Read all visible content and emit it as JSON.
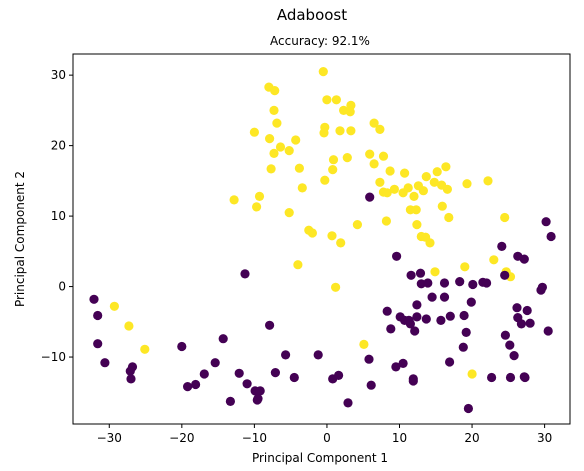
{
  "chart_data": {
    "type": "scatter",
    "title": "Adaboost",
    "subtitle": "Accuracy: 92.1%",
    "xlabel": "Principal Component 1",
    "ylabel": "Principal Component 2",
    "xlim": [
      -35,
      33.5
    ],
    "ylim": [
      -19.5,
      33
    ],
    "xticks": [
      -30,
      -20,
      -10,
      0,
      10,
      20,
      30
    ],
    "yticks": [
      -10,
      0,
      10,
      20,
      30
    ],
    "grid": false,
    "legend": "none",
    "colors": {
      "class_0": "#440154",
      "class_1": "#fde725"
    },
    "series": [
      {
        "color": "#fde725",
        "points": [
          [
            -8,
            28.3
          ],
          [
            -7.2,
            27.8
          ],
          [
            -7.3,
            25
          ],
          [
            -6.9,
            23.2
          ],
          [
            -10,
            21.9
          ],
          [
            -7.9,
            21
          ],
          [
            -4.3,
            20.8
          ],
          [
            -6.4,
            19.8
          ],
          [
            -5.2,
            19.3
          ],
          [
            -7.3,
            18.9
          ],
          [
            -7.7,
            16.7
          ],
          [
            -3.8,
            16.8
          ],
          [
            -3.4,
            14
          ],
          [
            -9.3,
            12.8
          ],
          [
            -12.8,
            12.3
          ],
          [
            -9.7,
            11.3
          ],
          [
            -5.2,
            10.5
          ],
          [
            -2.5,
            8
          ],
          [
            -2,
            7.6
          ],
          [
            -4,
            3.1
          ],
          [
            1.2,
            -0.1
          ],
          [
            -0.5,
            30.5
          ],
          [
            0,
            26.5
          ],
          [
            1.3,
            26.5
          ],
          [
            3.3,
            25.7
          ],
          [
            2.3,
            25
          ],
          [
            3.2,
            24.8
          ],
          [
            -0.3,
            22.6
          ],
          [
            1.8,
            22.1
          ],
          [
            3.3,
            22.1
          ],
          [
            6.5,
            23.2
          ],
          [
            7.3,
            22.3
          ],
          [
            -0.4,
            21.8
          ],
          [
            5.9,
            18.8
          ],
          [
            7.8,
            18.5
          ],
          [
            6.5,
            17.4
          ],
          [
            0.9,
            18
          ],
          [
            0.8,
            16.6
          ],
          [
            2.8,
            18.3
          ],
          [
            -0.3,
            15.1
          ],
          [
            7.3,
            14.8
          ],
          [
            7.8,
            13.4
          ],
          [
            8.3,
            13.3
          ],
          [
            9.3,
            13.8
          ],
          [
            10.5,
            13.3
          ],
          [
            11.2,
            14
          ],
          [
            11.5,
            10.9
          ],
          [
            12,
            12.8
          ],
          [
            12.6,
            14.3
          ],
          [
            13.3,
            13.6
          ],
          [
            14.8,
            14.8
          ],
          [
            15.2,
            16.3
          ],
          [
            15.8,
            14.4
          ],
          [
            16.4,
            17
          ],
          [
            16.6,
            13.8
          ],
          [
            19.3,
            14.6
          ],
          [
            22.2,
            15
          ],
          [
            24.5,
            9.8
          ],
          [
            8.7,
            16.4
          ],
          [
            10.7,
            16.1
          ],
          [
            13.7,
            15.6
          ],
          [
            15.9,
            11.4
          ],
          [
            16.8,
            9.8
          ],
          [
            12.3,
            10.9
          ],
          [
            13,
            7.1
          ],
          [
            13.6,
            7
          ],
          [
            14.2,
            6.2
          ],
          [
            12.4,
            8.8
          ],
          [
            8.2,
            9.3
          ],
          [
            4.2,
            8.8
          ],
          [
            1.9,
            6.2
          ],
          [
            0.7,
            7.2
          ],
          [
            14.9,
            2.1
          ],
          [
            19,
            2.8
          ],
          [
            23,
            3.8
          ],
          [
            24.7,
            2.1
          ],
          [
            25.3,
            1.4
          ],
          [
            5.1,
            -8.2
          ],
          [
            20,
            -12.4
          ],
          [
            -29.3,
            -2.8
          ],
          [
            -27.3,
            -5.6
          ],
          [
            -25.1,
            -8.9
          ]
        ]
      },
      {
        "color": "#440154",
        "points": [
          [
            -32.1,
            -1.8
          ],
          [
            -31.6,
            -4.1
          ],
          [
            -31.6,
            -8.1
          ],
          [
            -30.6,
            -10.8
          ],
          [
            -26.8,
            -11.4
          ],
          [
            -27.1,
            -12
          ],
          [
            -27,
            -13.1
          ],
          [
            -20,
            -8.5
          ],
          [
            -19.2,
            -14.2
          ],
          [
            -18.1,
            -13.9
          ],
          [
            -16.9,
            -12.4
          ],
          [
            -15.4,
            -10.8
          ],
          [
            -14.3,
            -7.4
          ],
          [
            -13.3,
            -16.3
          ],
          [
            -12.1,
            -12.3
          ],
          [
            -11,
            -13.8
          ],
          [
            -9.9,
            -14.8
          ],
          [
            -9.2,
            -14.8
          ],
          [
            -9.5,
            -15.9
          ],
          [
            -9.6,
            -16.1
          ],
          [
            -7.9,
            -5.5
          ],
          [
            -7.1,
            -12.2
          ],
          [
            -5.7,
            -9.7
          ],
          [
            -4.5,
            -12.9
          ],
          [
            -11.3,
            1.8
          ],
          [
            -1.2,
            -9.7
          ],
          [
            0.8,
            -13.1
          ],
          [
            1.6,
            -12.6
          ],
          [
            2.9,
            -16.5
          ],
          [
            5.8,
            -10.3
          ],
          [
            6.1,
            -14
          ],
          [
            5.9,
            12.7
          ],
          [
            8.3,
            -3.5
          ],
          [
            8.8,
            -6
          ],
          [
            9.6,
            4.3
          ],
          [
            9.5,
            -11.4
          ],
          [
            10.1,
            -4.3
          ],
          [
            10.7,
            -4.8
          ],
          [
            10.5,
            -10.9
          ],
          [
            11.3,
            -4.8
          ],
          [
            11.6,
            1.6
          ],
          [
            11.5,
            -5.3
          ],
          [
            11.9,
            -13.1
          ],
          [
            11.9,
            -13.4
          ],
          [
            12.1,
            -6.3
          ],
          [
            12.4,
            -4.3
          ],
          [
            12.4,
            -2.6
          ],
          [
            12.9,
            1.9
          ],
          [
            13,
            0.4
          ],
          [
            13.7,
            -4.6
          ],
          [
            13.9,
            0.5
          ],
          [
            14.5,
            -1.5
          ],
          [
            15.7,
            -4.8
          ],
          [
            16.2,
            0.5
          ],
          [
            16.2,
            -1.5
          ],
          [
            16.9,
            -10.7
          ],
          [
            17,
            -4.2
          ],
          [
            18.3,
            0.7
          ],
          [
            18.8,
            -8.6
          ],
          [
            18.9,
            -4.1
          ],
          [
            19.5,
            -17.3
          ],
          [
            19.2,
            -6.5
          ],
          [
            19.9,
            -2.2
          ],
          [
            20.1,
            0.3
          ],
          [
            21.5,
            0.6
          ],
          [
            22,
            0.5
          ],
          [
            22.7,
            -12.9
          ],
          [
            24.1,
            5.7
          ],
          [
            24.5,
            1.6
          ],
          [
            24.6,
            -6.9
          ],
          [
            25.2,
            -8.3
          ],
          [
            25.3,
            -12.9
          ],
          [
            25.8,
            -9.8
          ],
          [
            26.2,
            -3
          ],
          [
            26.3,
            4.3
          ],
          [
            26.3,
            -4.4
          ],
          [
            26.8,
            -5.3
          ],
          [
            27.3,
            -12.9
          ],
          [
            27.2,
            3.9
          ],
          [
            27.6,
            -3.4
          ],
          [
            28,
            -5.2
          ],
          [
            29.5,
            -0.5
          ],
          [
            30.2,
            9.2
          ],
          [
            30.5,
            -6.3
          ],
          [
            30.9,
            7.1
          ],
          [
            29.7,
            -0.1
          ],
          [
            27.2,
            -12.8
          ]
        ]
      }
    ]
  }
}
